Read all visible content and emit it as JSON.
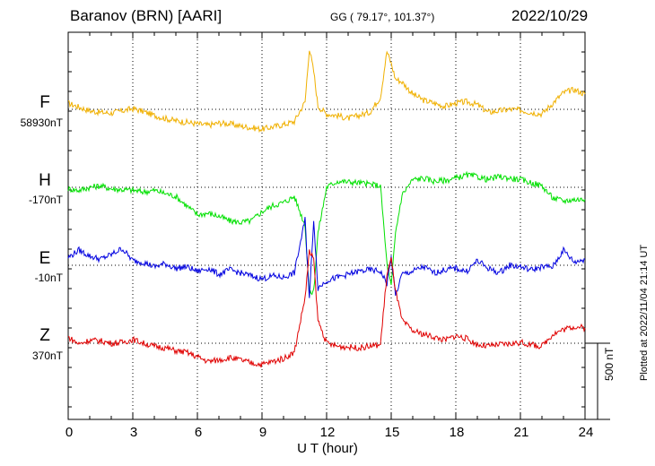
{
  "header": {
    "station": "Baranov (BRN)  [AARI]",
    "coords": "GG ( 79.17°, 101.37°)",
    "date": "2022/10/29"
  },
  "components": [
    {
      "name": "F",
      "baseline": "58930nT",
      "color": "#f0b000"
    },
    {
      "name": "H",
      "baseline": "-170nT",
      "color": "#00e000"
    },
    {
      "name": "E",
      "baseline": "-10nT",
      "color": "#0000e0"
    },
    {
      "name": "Z",
      "baseline": "370nT",
      "color": "#e00000"
    }
  ],
  "x_axis": {
    "label": "U T (hour)",
    "ticks": [
      "0",
      "3",
      "6",
      "9",
      "12",
      "15",
      "18",
      "21",
      "24"
    ]
  },
  "scale_bar": "500 nT",
  "plotted_note": "Plotted at 2022/11/04 21:14 UT",
  "chart_data": {
    "type": "line",
    "title": "Baranov (BRN)  [AARI]",
    "xlabel": "U T (hour)",
    "xlim": [
      0,
      24
    ],
    "grid": true,
    "units": "nT (deviation from baseline, scale bar 500 nT)",
    "x": [
      0,
      0.5,
      1,
      1.5,
      2,
      2.5,
      3,
      3.5,
      4,
      4.5,
      5,
      5.5,
      6,
      6.5,
      7,
      7.5,
      8,
      8.5,
      9,
      9.5,
      10,
      10.5,
      11,
      11.2,
      11.4,
      11.6,
      12,
      12.5,
      13,
      13.5,
      14,
      14.5,
      14.8,
      15,
      15.2,
      15.5,
      16,
      16.5,
      17,
      17.5,
      18,
      18.5,
      19,
      19.5,
      20,
      20.5,
      21,
      21.5,
      22,
      22.5,
      23,
      23.5,
      24
    ],
    "series": [
      {
        "name": "F",
        "values": [
          40,
          15,
          -10,
          -20,
          -25,
          -10,
          5,
          -15,
          -40,
          -60,
          -75,
          -85,
          -95,
          -105,
          -90,
          -95,
          -110,
          -120,
          -130,
          -115,
          -100,
          -80,
          50,
          400,
          250,
          20,
          -30,
          -40,
          -60,
          -40,
          -20,
          80,
          380,
          300,
          200,
          180,
          100,
          60,
          40,
          20,
          40,
          50,
          30,
          -20,
          -10,
          0,
          -5,
          -20,
          -30,
          40,
          110,
          130,
          100
        ],
        "visible_text": "F"
      },
      {
        "name": "H",
        "values": [
          -10,
          -20,
          0,
          10,
          -10,
          -15,
          -20,
          -30,
          -20,
          -40,
          -60,
          -120,
          -180,
          -170,
          -190,
          -220,
          -230,
          -220,
          -160,
          -120,
          -100,
          -60,
          -250,
          -700,
          -680,
          -300,
          0,
          40,
          35,
          30,
          20,
          10,
          -500,
          -650,
          -300,
          -50,
          50,
          60,
          40,
          45,
          60,
          80,
          70,
          50,
          70,
          60,
          50,
          30,
          10,
          -70,
          -90,
          -80,
          -80
        ],
        "visible_text": "H"
      },
      {
        "name": "E",
        "values": [
          50,
          100,
          60,
          40,
          70,
          110,
          30,
          20,
          -10,
          10,
          -20,
          -10,
          -40,
          -20,
          -60,
          -30,
          -50,
          -70,
          -90,
          -70,
          -80,
          -50,
          300,
          -220,
          300,
          -150,
          -100,
          -80,
          -60,
          -40,
          -30,
          -40,
          -120,
          50,
          -200,
          -60,
          -40,
          -10,
          -50,
          -30,
          -20,
          -40,
          30,
          -20,
          -50,
          0,
          -10,
          -30,
          -10,
          -10,
          100,
          20,
          40
        ],
        "visible_text": "E"
      },
      {
        "name": "Z",
        "values": [
          40,
          -5,
          20,
          15,
          0,
          5,
          25,
          0,
          -20,
          -30,
          -50,
          -60,
          -90,
          -120,
          -110,
          -95,
          -110,
          -130,
          -140,
          -120,
          -100,
          -60,
          300,
          600,
          550,
          150,
          0,
          -20,
          -25,
          -30,
          -20,
          -10,
          450,
          550,
          350,
          150,
          80,
          60,
          40,
          20,
          50,
          30,
          -10,
          -20,
          -10,
          -5,
          5,
          -10,
          -20,
          60,
          90,
          110,
          100
        ],
        "visible_text": "Z"
      }
    ]
  }
}
